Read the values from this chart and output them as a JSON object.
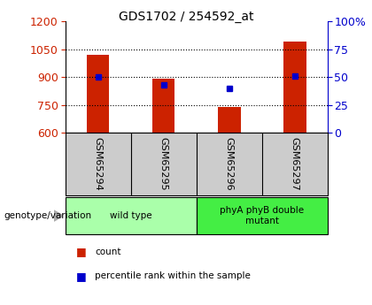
{
  "title": "GDS1702 / 254592_at",
  "samples": [
    "GSM65294",
    "GSM65295",
    "GSM65296",
    "GSM65297"
  ],
  "counts": [
    1020,
    890,
    740,
    1090
  ],
  "percentiles": [
    50,
    43,
    40,
    51
  ],
  "ylim_left": [
    600,
    1200
  ],
  "ylim_right": [
    0,
    100
  ],
  "yticks_left": [
    600,
    750,
    900,
    1050,
    1200
  ],
  "yticks_right": [
    0,
    25,
    50,
    75,
    100
  ],
  "bar_color": "#cc2200",
  "dot_color": "#0000cc",
  "bar_width": 0.35,
  "groups": [
    {
      "label": "wild type",
      "samples": [
        0,
        1
      ],
      "color": "#aaffaa"
    },
    {
      "label": "phyA phyB double\nmutant",
      "samples": [
        2,
        3
      ],
      "color": "#44ee44"
    }
  ],
  "genotype_label": "genotype/variation",
  "legend_count": "count",
  "legend_percentile": "percentile rank within the sample",
  "bar_axis_color": "#cc2200",
  "pct_axis_color": "#0000cc",
  "bg_color": "#ffffff",
  "sample_bg": "#cccccc",
  "title_fontsize": 10,
  "tick_fontsize": 9,
  "label_fontsize": 8
}
